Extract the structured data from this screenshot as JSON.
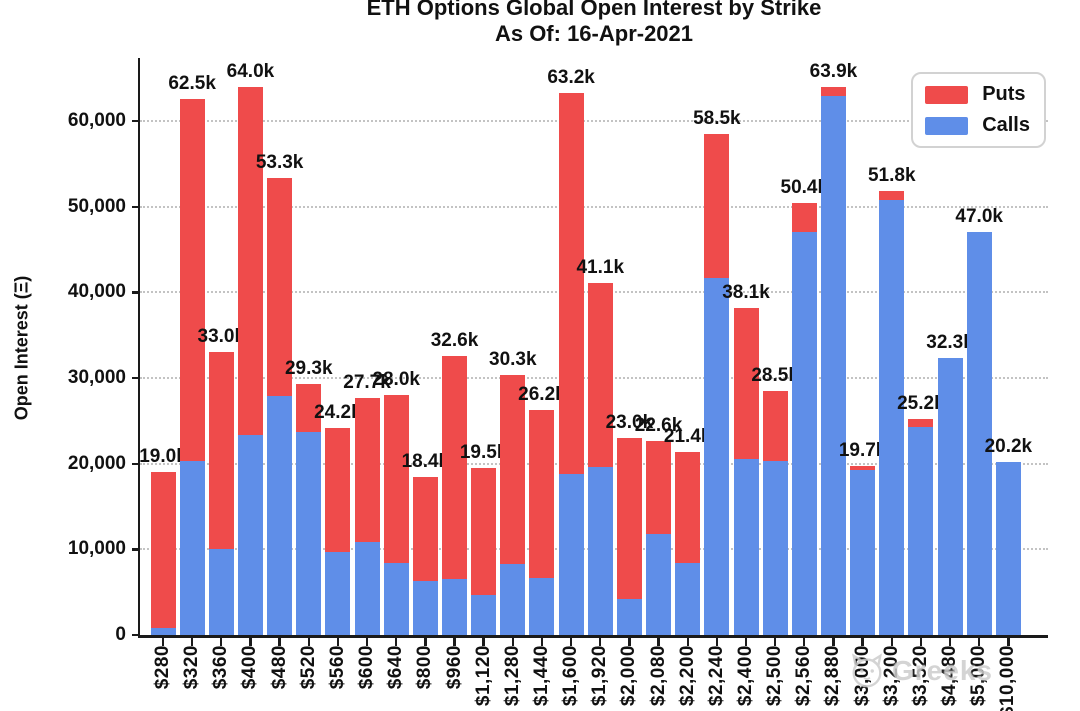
{
  "title": {
    "line1": "ETH Options Global Open Interest by Strike",
    "line2": "As Of: 16-Apr-2021"
  },
  "y_axis": {
    "label": "Open Interest (Ξ)",
    "ticks": [
      "0",
      "10,000",
      "20,000",
      "30,000",
      "40,000",
      "50,000",
      "60,000"
    ]
  },
  "legend": {
    "puts_label": "Puts",
    "calls_label": "Calls"
  },
  "colors": {
    "puts": "#ef4b4b",
    "calls": "#5f8ee8"
  },
  "watermark": "Greeks",
  "chart_data": {
    "type": "bar",
    "stacked": true,
    "title": "ETH Options Global Open Interest by Strike",
    "subtitle": "As Of: 16-Apr-2021",
    "xlabel": "",
    "ylabel": "Open Interest (Ξ)",
    "ylim": [
      0,
      67000
    ],
    "grid": "horizontal-dotted",
    "legend_position": "top-right",
    "categories": [
      "$280",
      "$320",
      "$360",
      "$400",
      "$480",
      "$520",
      "$560",
      "$600",
      "$640",
      "$800",
      "$960",
      "$1,120",
      "$1,280",
      "$1,440",
      "$1,600",
      "$1,920",
      "$2,000",
      "$2,080",
      "$2,200",
      "$2,240",
      "$2,400",
      "$2,500",
      "$2,560",
      "$2,880",
      "$3,000",
      "$3,200",
      "$3,520",
      "$4,480",
      "$5,000",
      "$10,000"
    ],
    "series": [
      {
        "name": "Calls",
        "color": "#5f8ee8",
        "values": [
          800,
          20300,
          10000,
          23300,
          27900,
          23700,
          9700,
          10900,
          8400,
          6300,
          6500,
          4700,
          8300,
          6700,
          18800,
          19600,
          4200,
          11800,
          8400,
          41600,
          20500,
          20300,
          47000,
          62900,
          19200,
          50700,
          24300,
          32300,
          47000,
          20200
        ]
      },
      {
        "name": "Puts",
        "color": "#ef4b4b",
        "values": [
          18200,
          42200,
          23000,
          40700,
          25400,
          5600,
          14500,
          16800,
          19600,
          12100,
          26100,
          14800,
          22000,
          19500,
          44400,
          21500,
          18800,
          10800,
          13000,
          16900,
          17600,
          8200,
          3400,
          1000,
          500,
          1100,
          900,
          0,
          0,
          0
        ]
      }
    ],
    "total_labels": [
      "19.0k",
      "62.5k",
      "33.0k",
      "64.0k",
      "53.3k",
      "29.3k",
      "24.2k",
      "27.7k",
      "28.0k",
      "18.4k",
      "32.6k",
      "19.5k",
      "30.3k",
      "26.2k",
      "63.2k",
      "41.1k",
      "23.0k",
      "22.6k",
      "21.4k",
      "58.5k",
      "38.1k",
      "28.5k",
      "50.4k",
      "63.9k",
      "19.7k",
      "51.8k",
      "25.2k",
      "32.3k",
      "47.0k",
      "20.2k"
    ],
    "y_tick_values": [
      0,
      10000,
      20000,
      30000,
      40000,
      50000,
      60000
    ]
  }
}
